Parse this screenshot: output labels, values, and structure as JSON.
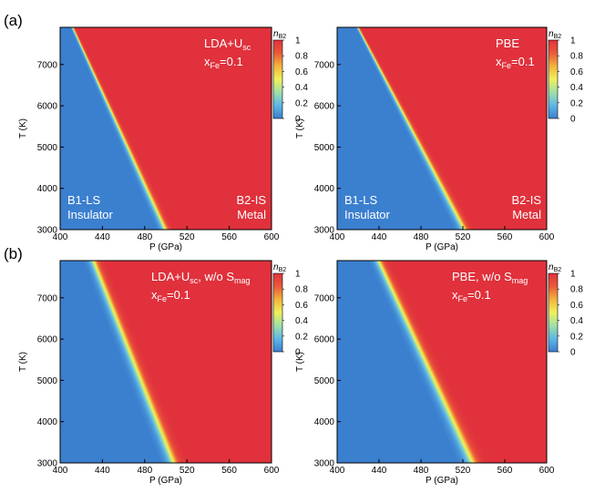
{
  "figure": {
    "rows": [
      {
        "tag": "(a)"
      },
      {
        "tag": "(b)"
      }
    ]
  },
  "colorbar": {
    "title": "n",
    "title_sub": "B2",
    "ticks": [
      "0",
      "0.2",
      "0.4",
      "0.6",
      "0.8",
      "1"
    ],
    "stops": [
      "#3b7fcf",
      "#5fb6e6",
      "#9fe0a6",
      "#f0f05a",
      "#f3b43c",
      "#ea5a3a",
      "#e0313c"
    ]
  },
  "colors": {
    "b1_blue": "#3b7fcf",
    "b2_red": "#e0313c"
  },
  "chart_data": [
    {
      "type": "heatmap",
      "panel": "a-left",
      "xlabel": "P (GPa)",
      "ylabel": "T (K)",
      "xlim": [
        400,
        600
      ],
      "ylim": [
        3000,
        7900
      ],
      "xticks": [
        "400",
        "440",
        "480",
        "520",
        "560",
        "600"
      ],
      "yticks": [
        "3000",
        "4000",
        "5000",
        "6000",
        "7000"
      ],
      "label": {
        "main": "LDA+U",
        "sub": "sc",
        "tail": ""
      },
      "composition": {
        "main": "x",
        "sub": "Fe",
        "tail": "=0.1"
      },
      "phase_left": {
        "line1": "B1-LS",
        "line2": "Insulator"
      },
      "phase_right": {
        "line1": "B2-IS",
        "line2": "Metal"
      },
      "boundary": {
        "T": [
          3000,
          7900
        ],
        "P_center": [
          500,
          412
        ],
        "width_GPa": [
          6,
          2
        ]
      },
      "value_range": [
        0,
        1
      ]
    },
    {
      "type": "heatmap",
      "panel": "a-right",
      "xlabel": "P (GPa)",
      "ylabel": "T (K)",
      "xlim": [
        400,
        600
      ],
      "ylim": [
        3000,
        7900
      ],
      "xticks": [
        "400",
        "440",
        "480",
        "520",
        "560",
        "600"
      ],
      "yticks": [
        "3000",
        "4000",
        "5000",
        "6000",
        "7000"
      ],
      "label": {
        "main": "PBE",
        "sub": "",
        "tail": ""
      },
      "composition": {
        "main": "x",
        "sub": "Fe",
        "tail": "=0.1"
      },
      "phase_left": {
        "line1": "B1-LS",
        "line2": "Insulator"
      },
      "phase_right": {
        "line1": "B2-IS",
        "line2": "Metal"
      },
      "boundary": {
        "T": [
          3000,
          7900
        ],
        "P_center": [
          522,
          420
        ],
        "width_GPa": [
          7,
          2
        ]
      },
      "value_range": [
        0,
        1
      ]
    },
    {
      "type": "heatmap",
      "panel": "b-left",
      "xlabel": "P (GPa)",
      "ylabel": "T (K)",
      "xlim": [
        400,
        600
      ],
      "ylim": [
        3000,
        7900
      ],
      "xticks": [
        "400",
        "440",
        "480",
        "520",
        "560",
        "600"
      ],
      "yticks": [
        "3000",
        "4000",
        "5000",
        "6000",
        "7000"
      ],
      "label": {
        "main": "LDA+U",
        "sub": "sc",
        "tail": ", w/o S",
        "sub2": "mag"
      },
      "composition": {
        "main": "x",
        "sub": "Fe",
        "tail": "=0.1"
      },
      "phase_left": null,
      "phase_right": null,
      "boundary": {
        "T": [
          3000,
          7900
        ],
        "P_center": [
          508,
          432
        ],
        "width_GPa": [
          9,
          7
        ]
      },
      "value_range": [
        0,
        1
      ]
    },
    {
      "type": "heatmap",
      "panel": "b-right",
      "xlabel": "P (GPa)",
      "ylabel": "T (K)",
      "xlim": [
        400,
        600
      ],
      "ylim": [
        3000,
        7900
      ],
      "xticks": [
        "400",
        "440",
        "480",
        "520",
        "560",
        "600"
      ],
      "yticks": [
        "3000",
        "4000",
        "5000",
        "6000",
        "7000"
      ],
      "label": {
        "main": "PBE, w/o S",
        "sub": "mag",
        "tail": ""
      },
      "composition": {
        "main": "x",
        "sub": "Fe",
        "tail": "=0.1"
      },
      "phase_left": null,
      "phase_right": null,
      "boundary": {
        "T": [
          3000,
          7900
        ],
        "P_center": [
          530,
          440
        ],
        "width_GPa": [
          10,
          7
        ]
      },
      "value_range": [
        0,
        1
      ]
    }
  ]
}
